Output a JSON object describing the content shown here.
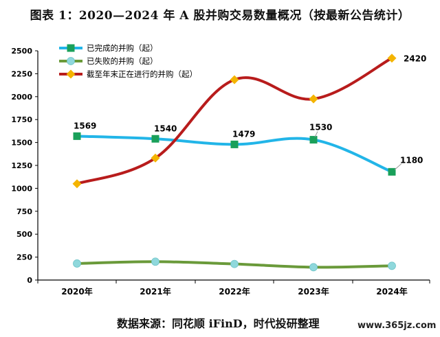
{
  "chart_data": {
    "type": "line",
    "title": "图表 1：2020—2024 年 A 股并购交易数量概况（按最新公告统计）",
    "categories": [
      "2020年",
      "2021年",
      "2022年",
      "2023年",
      "2024年"
    ],
    "ylim": [
      0,
      2500
    ],
    "yticks": [
      "0",
      "250",
      "500",
      "750",
      "1000",
      "1250",
      "1500",
      "1750",
      "2000",
      "2250",
      "2500"
    ],
    "xlabel": "",
    "ylabel": "",
    "grid": false,
    "legend_position": "top-left",
    "series": [
      {
        "name": "已完成的并购（起）",
        "values": [
          1569,
          1540,
          1479,
          1530,
          1180
        ],
        "line_color": "#22b5e8",
        "marker_color": "#1aa05a",
        "marker": "square",
        "data_labels": [
          "1569",
          "1540",
          "1479",
          "1530",
          "1180"
        ]
      },
      {
        "name": "已失败的并购（起）",
        "values": [
          180,
          200,
          175,
          140,
          155
        ],
        "line_color": "#6a9a3a",
        "marker_color": "#8fd8dc",
        "marker": "circle",
        "data_labels": []
      },
      {
        "name": "截至年末正在进行的并购（起）",
        "values": [
          1050,
          1330,
          2185,
          1975,
          2420
        ],
        "line_color": "#b81c1c",
        "marker_color": "#f4b400",
        "marker": "diamond",
        "data_labels": [
          "",
          "",
          "",
          "",
          "2420"
        ]
      }
    ]
  },
  "source_note": "数据来源：同花顺 iFinD，时代投研整理",
  "watermark": "www.365jz.com"
}
